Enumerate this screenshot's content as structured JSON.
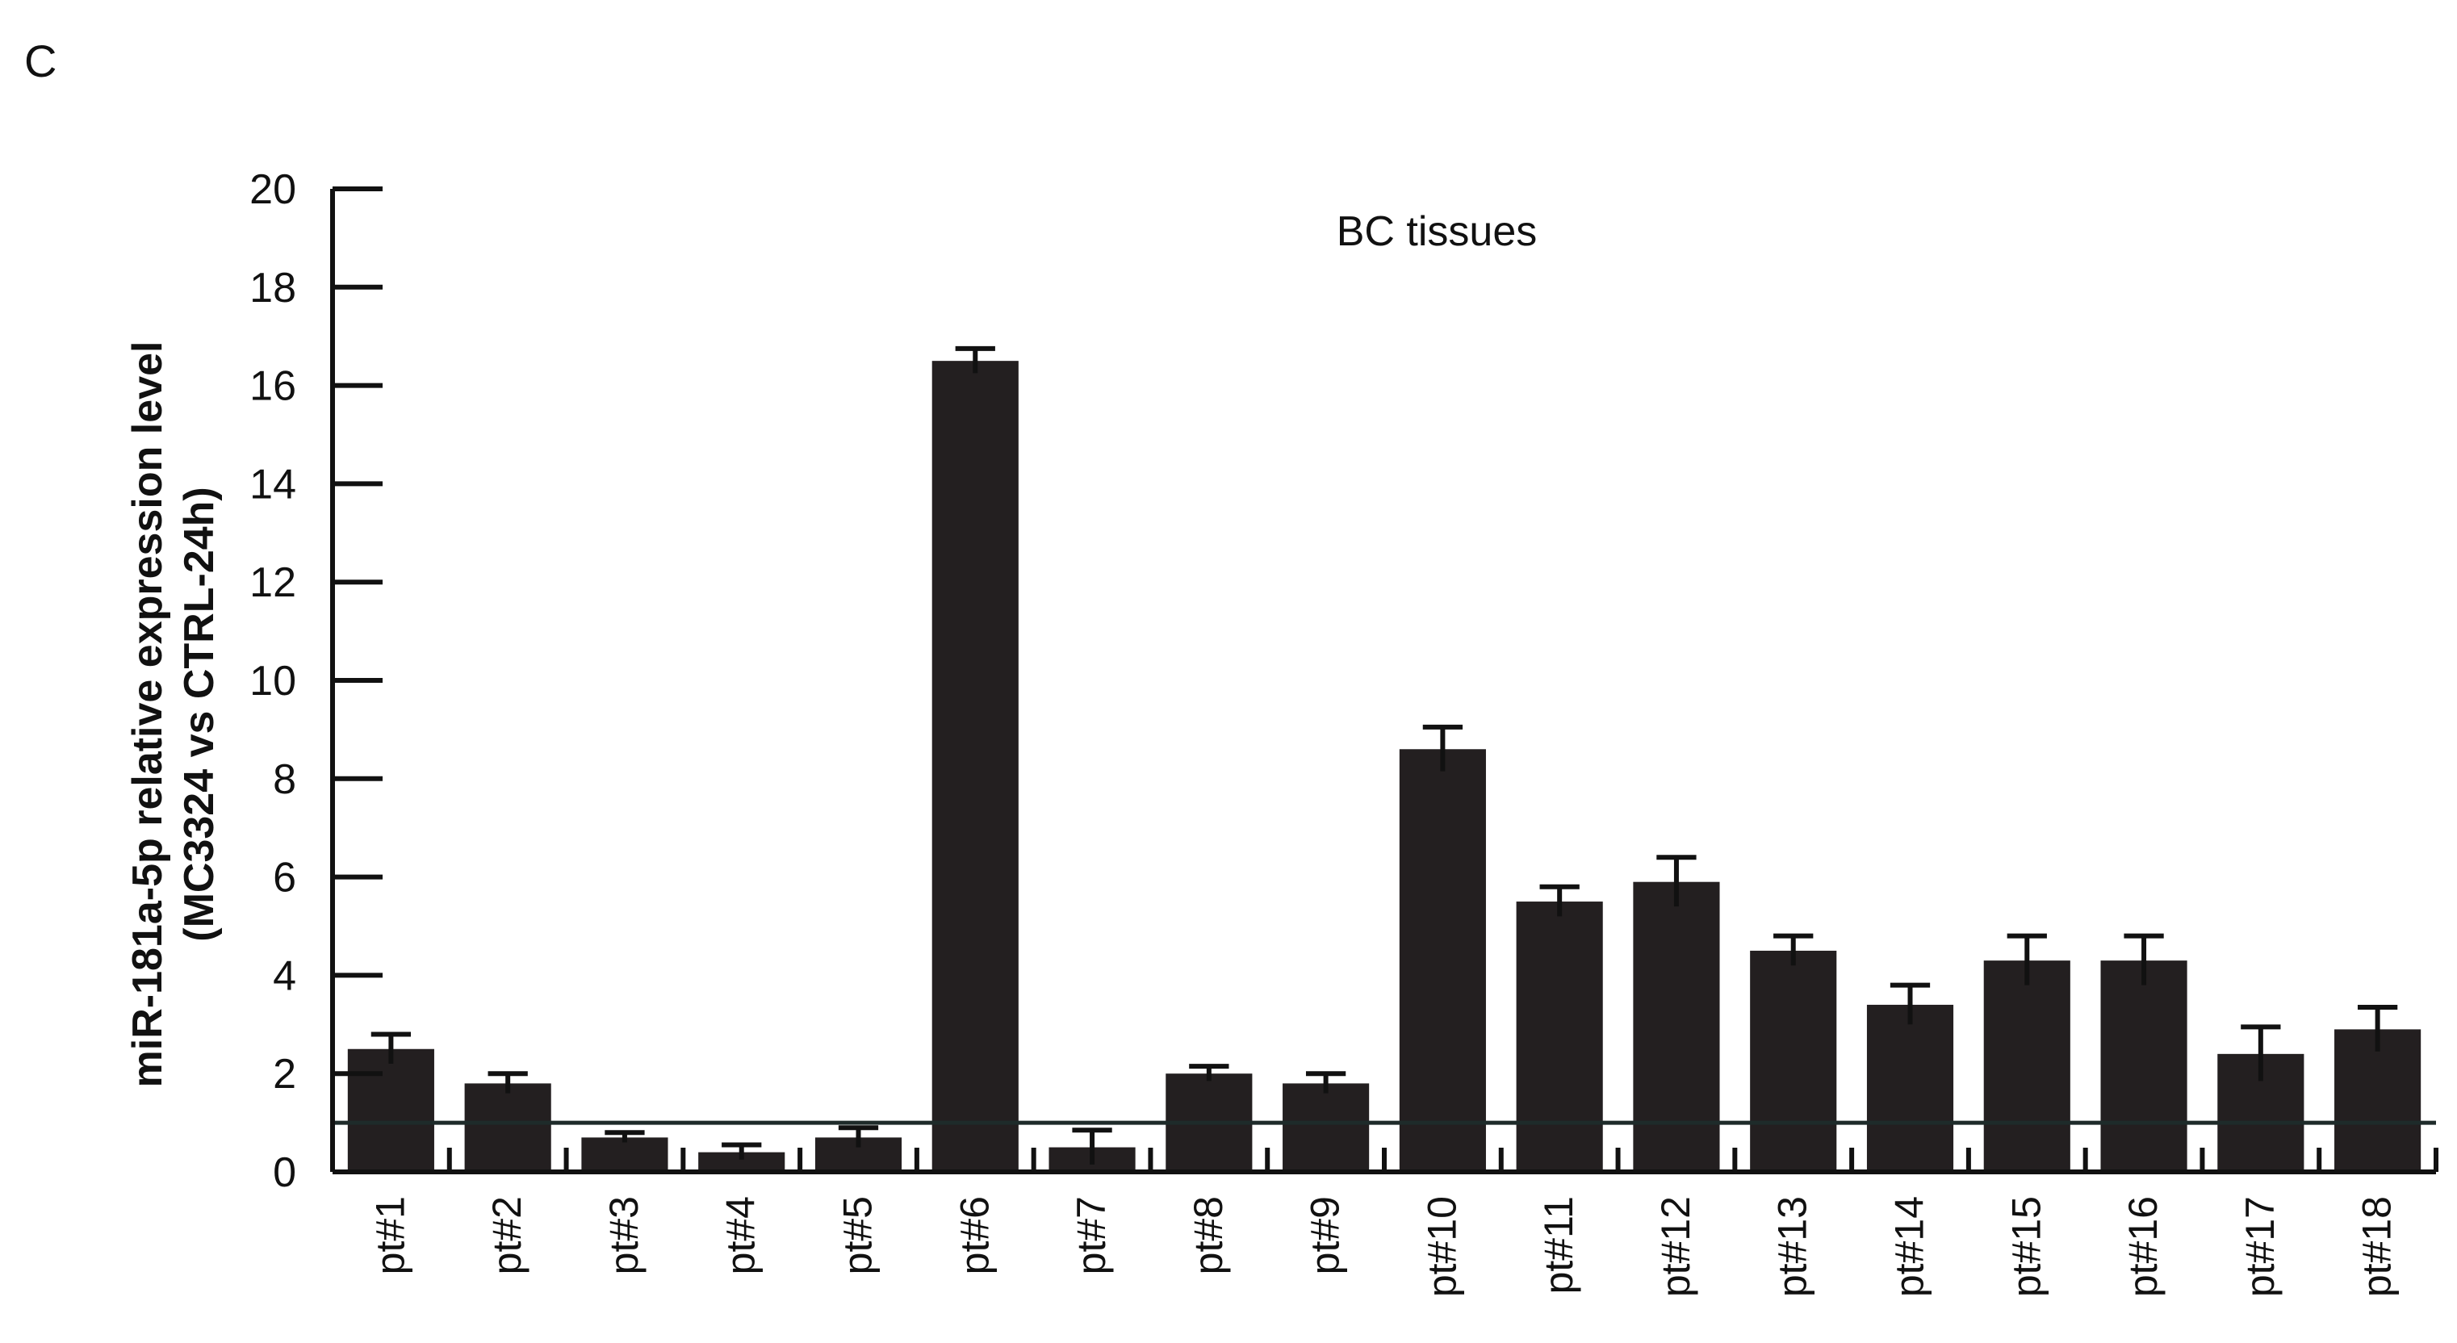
{
  "panel_label": "C",
  "chart_data": {
    "type": "bar",
    "title": "BC tissues",
    "xlabel": "",
    "ylabel": [
      "miR-181a-5p relative expression level",
      "(MC3324 vs CTRL-24h)"
    ],
    "ylim": [
      0,
      20
    ],
    "yticks": [
      0,
      2,
      4,
      6,
      8,
      10,
      12,
      14,
      16,
      18,
      20
    ],
    "reference_line": 1,
    "grid": false,
    "legend": "none",
    "categories": [
      "pt#1",
      "pt#2",
      "pt#3",
      "pt#4",
      "pt#5",
      "pt#6",
      "pt#7",
      "pt#8",
      "pt#9",
      "pt#10",
      "pt#11",
      "pt#12",
      "pt#13",
      "pt#14",
      "pt#15",
      "pt#16",
      "pt#17",
      "pt#18"
    ],
    "values": [
      2.5,
      1.8,
      0.7,
      0.4,
      0.7,
      16.5,
      0.5,
      2.0,
      1.8,
      8.6,
      5.5,
      5.9,
      4.5,
      3.4,
      4.3,
      4.3,
      2.4,
      2.9
    ],
    "errors": [
      0.3,
      0.2,
      0.1,
      0.15,
      0.2,
      0.25,
      0.35,
      0.15,
      0.2,
      0.45,
      0.3,
      0.5,
      0.3,
      0.4,
      0.5,
      0.5,
      0.55,
      0.45
    ],
    "bar_color": "#231f20"
  }
}
